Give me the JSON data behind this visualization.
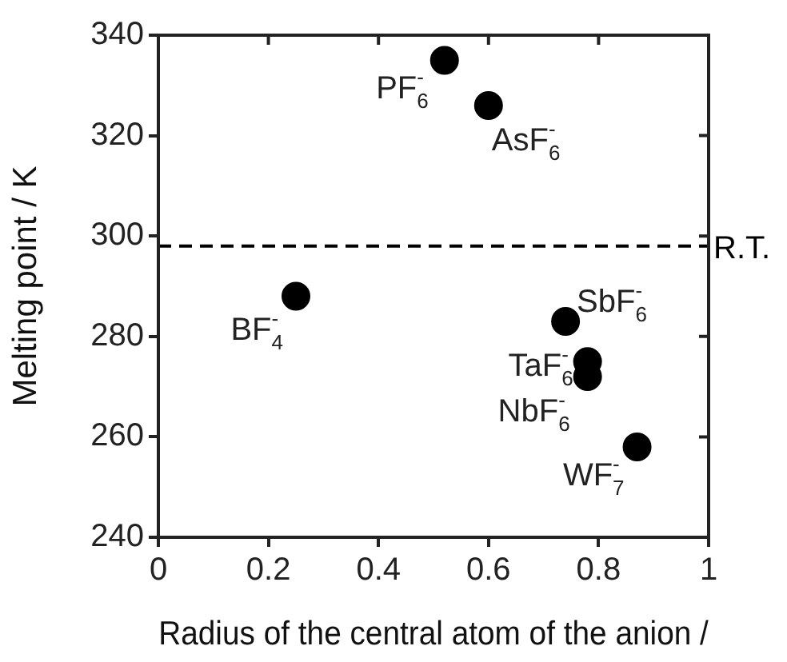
{
  "chart_data": {
    "type": "scatter",
    "xlabel": "Radius of the central atom of the anion /",
    "ylabel": "Melting point / K",
    "series": [
      {
        "color": "#000000",
        "x": [
          0.52,
          0.6,
          0.25,
          0.74,
          0.78,
          0.78,
          0.87
        ],
        "values": [
          335,
          326,
          288,
          283,
          275,
          272,
          258
        ]
      }
    ],
    "xlim": [
      0,
      1
    ],
    "xticks": [
      0,
      0.2,
      0.4,
      0.6,
      0.8,
      1
    ],
    "ylim": [
      240,
      340
    ],
    "yticks": [
      240,
      260,
      280,
      300,
      320,
      340
    ],
    "marker": "circle",
    "grid": false,
    "legend": false,
    "ref_lines": [
      {
        "axis": "y",
        "value": 298,
        "label": "R.T.",
        "color": "#000000",
        "line_style": "dashed"
      }
    ],
    "annotations": [
      {
        "text": "PF$_{6}$$^{-}$",
        "x": 0.52,
        "y": 335
      },
      {
        "text": "AsF$_{6}$$^{-}$",
        "x": 0.6,
        "y": 326
      },
      {
        "text": "BF$_{4}$$^{-}$",
        "x": 0.25,
        "y": 288
      },
      {
        "text": "SbF$_{6}$$^{-}$",
        "x": 0.74,
        "y": 283
      },
      {
        "text": "TaF$_{6}$$^{-}$",
        "x": 0.78,
        "y": 275
      },
      {
        "text": "NbF$_{6}$$^{-}$",
        "x": 0.78,
        "y": 272
      },
      {
        "text": "WF$_{7}$$^{-}$",
        "x": 0.87,
        "y": 258
      }
    ]
  }
}
